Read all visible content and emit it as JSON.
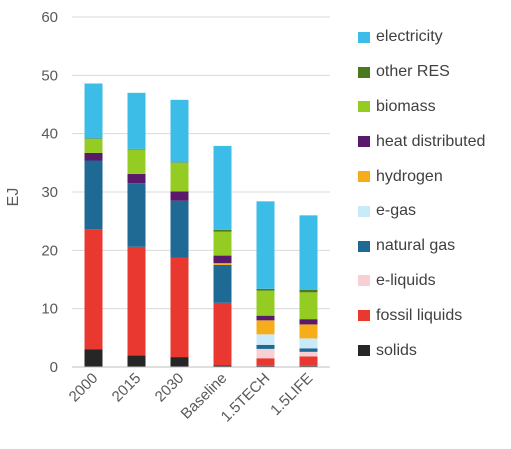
{
  "chart_data": {
    "type": "bar",
    "stacked": true,
    "ylabel": "EJ",
    "xlabel": "",
    "ylim": [
      0,
      60
    ],
    "yticks": [
      0,
      10,
      20,
      30,
      40,
      50,
      60
    ],
    "grid": true,
    "legend_position": "right",
    "categories": [
      "2000",
      "2015",
      "2030",
      "Baseline",
      "1.5TECH",
      "1.5LIFE"
    ],
    "series": [
      {
        "name": "solids",
        "color": "#262626",
        "values": [
          3.0,
          2.0,
          1.7,
          0.3,
          0.2,
          0.2
        ]
      },
      {
        "name": "fossil liquids",
        "color": "#e8382f",
        "values": [
          20.6,
          18.6,
          17.0,
          10.7,
          1.3,
          1.6
        ]
      },
      {
        "name": "e-liquids",
        "color": "#f8cfd2",
        "values": [
          0,
          0,
          0,
          0,
          1.6,
          0.8
        ]
      },
      {
        "name": "natural gas",
        "color": "#1f6a94",
        "values": [
          11.8,
          10.9,
          9.8,
          6.5,
          0.7,
          0.6
        ]
      },
      {
        "name": "e-gas",
        "color": "#c9eaf8",
        "values": [
          0,
          0,
          0,
          0,
          1.8,
          1.7
        ]
      },
      {
        "name": "hydrogen",
        "color": "#f5ad1a",
        "values": [
          0,
          0,
          0,
          0.3,
          2.4,
          2.4
        ]
      },
      {
        "name": "heat distributed",
        "color": "#5a1a6b",
        "values": [
          1.3,
          1.6,
          1.6,
          1.3,
          0.8,
          0.9
        ]
      },
      {
        "name": "biomass",
        "color": "#94cc23",
        "values": [
          2.4,
          4.2,
          4.9,
          4.1,
          4.3,
          4.6
        ]
      },
      {
        "name": "other RES",
        "color": "#4a7a1c",
        "values": [
          0.1,
          0.1,
          0.1,
          0.3,
          0.3,
          0.4
        ]
      },
      {
        "name": "electricity",
        "color": "#3cbde8",
        "values": [
          9.4,
          9.6,
          10.7,
          14.4,
          15.0,
          12.8
        ]
      }
    ]
  }
}
